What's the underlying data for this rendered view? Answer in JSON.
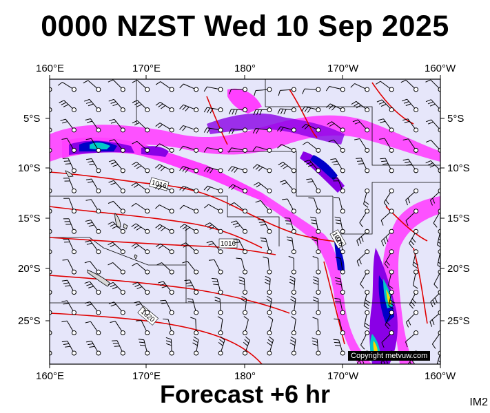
{
  "header": {
    "title": "0000 NZST Wed 10 Sep 2025"
  },
  "footer": {
    "forecast": "Forecast +6 hr",
    "tag": "IM2"
  },
  "copyright": "Copyright metvuw.com",
  "axes": {
    "top_lon": [
      "160°E",
      "170°E",
      "180°",
      "170°W",
      "160°W"
    ],
    "bottom_lon": [
      "160°E",
      "170°E",
      "180°",
      "170°W",
      "160°W"
    ],
    "left_lat": [
      "5°S",
      "10°S",
      "15°S",
      "20°S",
      "25°S"
    ],
    "right_lat": [
      "5°S",
      "10°S",
      "15°S",
      "20°S",
      "25°S"
    ]
  },
  "isobars": [
    {
      "label": "1016"
    },
    {
      "label": "1016"
    },
    {
      "label": "1016"
    },
    {
      "label": "1020"
    }
  ],
  "colors": {
    "background": "#e6e6fa",
    "isobar": "#e00000",
    "rain_light": "#ff40ff",
    "rain_mid": "#8a00e6",
    "rain_heavy": "#0000c8",
    "rain_very_heavy": "#00c8c8",
    "rain_extreme": "#ffd700"
  }
}
